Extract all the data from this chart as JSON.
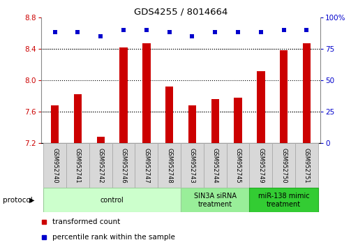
{
  "title": "GDS4255 / 8014664",
  "samples": [
    "GSM952740",
    "GSM952741",
    "GSM952742",
    "GSM952746",
    "GSM952747",
    "GSM952748",
    "GSM952743",
    "GSM952744",
    "GSM952745",
    "GSM952749",
    "GSM952750",
    "GSM952751"
  ],
  "transformed_count": [
    7.68,
    7.82,
    7.28,
    8.42,
    8.47,
    7.92,
    7.68,
    7.76,
    7.78,
    8.12,
    8.38,
    8.47
  ],
  "percentile_rank": [
    88,
    88,
    85,
    90,
    90,
    88,
    85,
    88,
    88,
    88,
    90,
    90
  ],
  "ylim_left": [
    7.2,
    8.8
  ],
  "ylim_right": [
    0,
    100
  ],
  "yticks_left": [
    7.2,
    7.6,
    8.0,
    8.4,
    8.8
  ],
  "yticks_right": [
    0,
    25,
    50,
    75,
    100
  ],
  "ytick_labels_right": [
    "0",
    "25",
    "50",
    "75",
    "100%"
  ],
  "bar_color": "#cc0000",
  "dot_color": "#0000cc",
  "protocol_groups": [
    {
      "label": "control",
      "start": 0,
      "end": 5,
      "color": "#ccffcc",
      "edge_color": "#99cc99"
    },
    {
      "label": "SIN3A siRNA\ntreatment",
      "start": 6,
      "end": 8,
      "color": "#99ee99",
      "edge_color": "#99cc99"
    },
    {
      "label": "miR-138 mimic\ntreatment",
      "start": 9,
      "end": 11,
      "color": "#33cc33",
      "edge_color": "#22aa22"
    }
  ],
  "bar_width": 0.35,
  "legend_items": [
    {
      "label": "transformed count",
      "color": "#cc0000"
    },
    {
      "label": "percentile rank within the sample",
      "color": "#0000cc"
    }
  ]
}
